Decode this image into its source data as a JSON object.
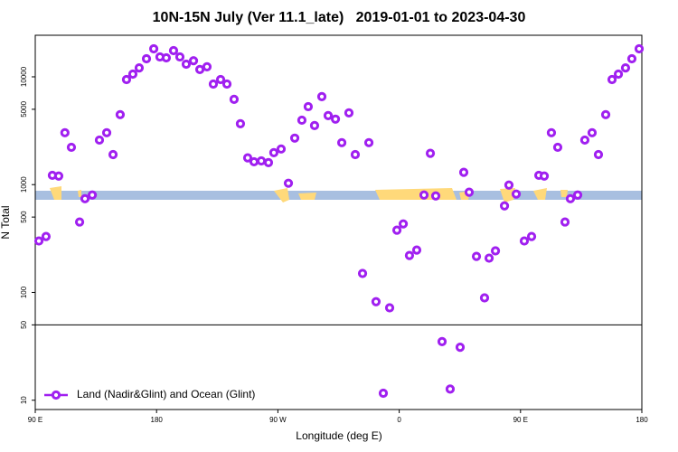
{
  "chart_data": {
    "type": "scatter",
    "title": "10N-15N July (Ver 11.1_late)   2019-01-01 to 2023-04-30",
    "x_label": "Longitude (deg E)",
    "y_label": "N Total",
    "log_y": true,
    "hline": 50,
    "legend_position": "bottom-left",
    "xlim": [
      90,
      540
    ],
    "ylim": [
      8.2,
      24300
    ],
    "xticks": [
      {
        "value": 90,
        "label": "90 E"
      },
      180,
      {
        "value": 270,
        "label": "90 W"
      },
      {
        "value": 360,
        "label": "0"
      },
      {
        "value": 450,
        "label": "90 E"
      },
      {
        "value": 540,
        "label": "180"
      }
    ],
    "yticks": [
      10,
      50,
      100,
      500,
      1000,
      5000,
      10000
    ],
    "series": [
      {
        "name": "Land (Nadir&Glint) and Ocean (Glint)",
        "color": "#a020f0",
        "x": [
          92.7,
          98,
          102.7,
          107.4,
          112,
          116.8,
          122.9,
          126.9,
          132.3,
          137.6,
          143,
          147.7,
          153,
          157.7,
          162.4,
          167.1,
          172.5,
          177.9,
          182.5,
          187.2,
          192.6,
          197.3,
          202,
          207.4,
          212.1,
          217.4,
          222.1,
          227.5,
          232.2,
          237.5,
          242.2,
          247.6,
          252.3,
          257.7,
          263,
          267,
          272.4,
          277.8,
          282.5,
          287.8,
          292.5,
          297.2,
          302.6,
          307.3,
          312.7,
          317.4,
          322.7,
          327.4,
          332.8,
          337.5,
          342.8,
          348.2,
          352.9,
          358.3,
          363,
          367.6,
          373,
          378.4,
          383.1,
          387.1,
          391.8,
          397.8,
          405.2,
          407.9,
          411.9,
          417.3,
          423.3,
          426.7,
          431.4,
          438.1,
          441.4,
          446.8,
          452.8,
          458.2,
          463.6,
          467.6,
          472.9,
          477.6,
          483,
          487,
          492.4,
          497.7,
          503.1,
          507.8,
          513.2,
          517.9,
          522.6,
          527.9,
          532.6,
          538
        ],
        "values": [
          300,
          330,
          1220,
          1200,
          3030,
          2220,
          450,
          740,
          800,
          2590,
          3030,
          1900,
          4460,
          9440,
          10600,
          12100,
          14700,
          18200,
          15300,
          15000,
          17500,
          15300,
          13100,
          14100,
          11700,
          12400,
          8570,
          9440,
          8570,
          6180,
          3670,
          1770,
          1630,
          1660,
          1600,
          1980,
          2140,
          1030,
          2700,
          3960,
          5290,
          3530,
          6550,
          4370,
          4050,
          2450,
          4630,
          1900,
          150,
          2450,
          82,
          11.6,
          72,
          378,
          432,
          220,
          247,
          800,
          1950,
          785,
          35,
          12.7,
          31,
          1300,
          850,
          216,
          89,
          208,
          243,
          635,
          990,
          817,
          300,
          330,
          1220,
          1200,
          3030,
          2220,
          450,
          740,
          800,
          2590,
          3030,
          1900,
          4460,
          9440,
          10600,
          12100,
          14700,
          18200
        ]
      }
    ]
  }
}
